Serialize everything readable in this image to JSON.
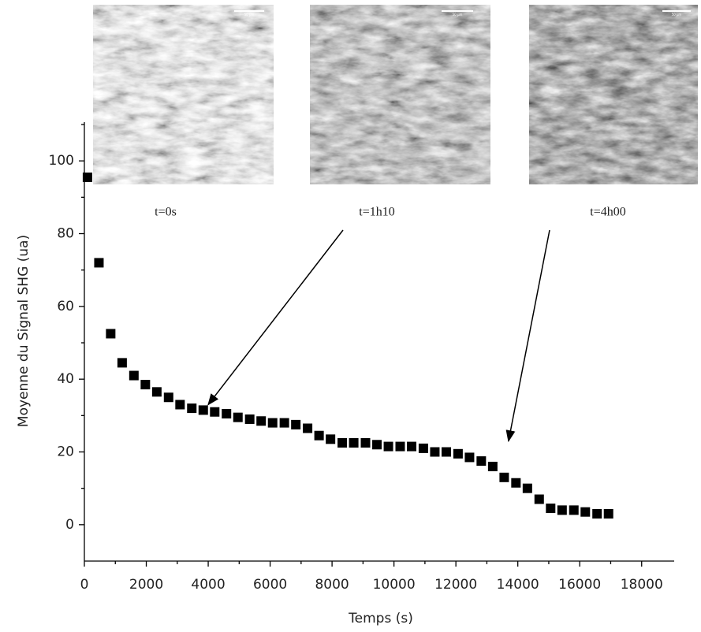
{
  "chart_data": {
    "type": "scatter",
    "x_label": "Temps (s)",
    "y_label": "Moyenne du Signal SHG (ua)",
    "series": [
      {
        "color": "#000000",
        "x": [
          100,
          470,
          850,
          1220,
          1600,
          1970,
          2340,
          2720,
          3090,
          3470,
          3840,
          4210,
          4590,
          4960,
          5340,
          5710,
          6080,
          6460,
          6830,
          7210,
          7580,
          7950,
          8330,
          8700,
          9080,
          9450,
          9820,
          10200,
          10570,
          10950,
          11320,
          11690,
          12070,
          12440,
          12820,
          13190,
          13560,
          13940,
          14310,
          14690,
          15060,
          15430,
          15810,
          16180,
          16560,
          16930
        ],
        "values": [
          95.5,
          72,
          52.5,
          44.5,
          41,
          38.5,
          36.5,
          35,
          33,
          32,
          31.5,
          31,
          30.5,
          29.5,
          29,
          28.5,
          28,
          28,
          27.5,
          26.5,
          24.5,
          23.5,
          22.5,
          22.5,
          22.5,
          22,
          21.5,
          21.5,
          21.5,
          21,
          20,
          20,
          19.5,
          18.5,
          17.5,
          16,
          13,
          11.5,
          10,
          7,
          4.5,
          4,
          4,
          3.5,
          3,
          3
        ]
      }
    ],
    "xlim": [
      0,
      19000
    ],
    "xticks": [
      0,
      2000,
      4000,
      6000,
      8000,
      10000,
      12000,
      14000,
      16000,
      18000
    ],
    "ylim": [
      -10,
      110
    ],
    "yticks": [
      0,
      20,
      40,
      60,
      80,
      100
    ],
    "annotations": [
      {
        "text": "t=0s"
      },
      {
        "text": "t=1h10",
        "x": 4000,
        "y": 33
      },
      {
        "text": "t=4h00",
        "x": 13700,
        "y": 23
      }
    ],
    "scale_bar_label": "50 µm"
  }
}
